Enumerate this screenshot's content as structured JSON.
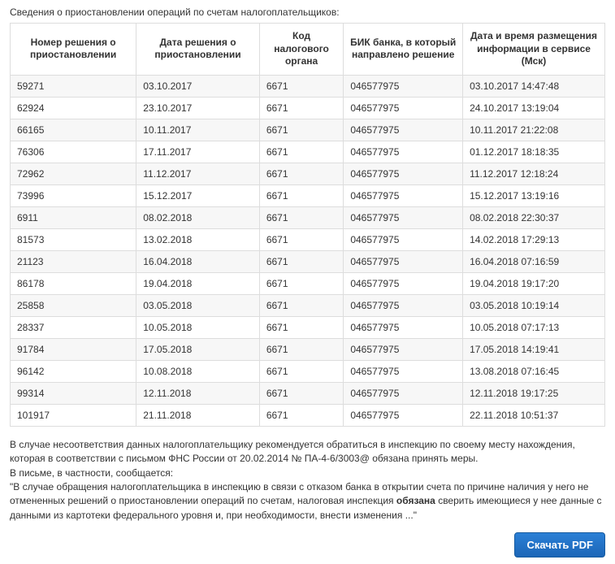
{
  "section_title": "Сведения о приостановлении операций по счетам налогоплательщиков:",
  "table": {
    "columns": [
      "Номер решения о приостановлении",
      "Дата решения о приостановлении",
      "Код налогового органа",
      "БИК банка, в который направлено решение",
      "Дата и время размещения информации в сервисе (Мск)"
    ],
    "rows": [
      [
        "59271",
        "03.10.2017",
        "6671",
        "046577975",
        "03.10.2017 14:47:48"
      ],
      [
        "62924",
        "23.10.2017",
        "6671",
        "046577975",
        "24.10.2017 13:19:04"
      ],
      [
        "66165",
        "10.11.2017",
        "6671",
        "046577975",
        "10.11.2017 21:22:08"
      ],
      [
        "76306",
        "17.11.2017",
        "6671",
        "046577975",
        "01.12.2017 18:18:35"
      ],
      [
        "72962",
        "11.12.2017",
        "6671",
        "046577975",
        "11.12.2017 12:18:24"
      ],
      [
        "73996",
        "15.12.2017",
        "6671",
        "046577975",
        "15.12.2017 13:19:16"
      ],
      [
        "6911",
        "08.02.2018",
        "6671",
        "046577975",
        "08.02.2018 22:30:37"
      ],
      [
        "81573",
        "13.02.2018",
        "6671",
        "046577975",
        "14.02.2018 17:29:13"
      ],
      [
        "21123",
        "16.04.2018",
        "6671",
        "046577975",
        "16.04.2018 07:16:59"
      ],
      [
        "86178",
        "19.04.2018",
        "6671",
        "046577975",
        "19.04.2018 19:17:20"
      ],
      [
        "25858",
        "03.05.2018",
        "6671",
        "046577975",
        "03.05.2018 10:19:14"
      ],
      [
        "28337",
        "10.05.2018",
        "6671",
        "046577975",
        "10.05.2018 07:17:13"
      ],
      [
        "91784",
        "17.05.2018",
        "6671",
        "046577975",
        "17.05.2018 14:19:41"
      ],
      [
        "96142",
        "10.08.2018",
        "6671",
        "046577975",
        "13.08.2018 07:16:45"
      ],
      [
        "99314",
        "12.11.2018",
        "6671",
        "046577975",
        "12.11.2018 19:17:25"
      ],
      [
        "101917",
        "21.11.2018",
        "6671",
        "046577975",
        "22.11.2018 10:51:37"
      ]
    ]
  },
  "footer": {
    "p1a": "В случае несоответствия данных налогоплательщику рекомендуется обратиться в инспекцию по своему месту нахождения, которая в соответствии с письмом ФНС России от 20.02.2014 № ПА-4-6/3003@ обязана принять меры.",
    "p2": "В письме, в частности, сообщается:",
    "p3a": "\"В случае обращения налогоплательщика в инспекцию в связи с отказом банка в открытии счета по причине наличия у него не отмененных решений о приостановлении операций по счетам, налоговая инспекция ",
    "p3bold": "обязана",
    "p3b": " сверить имеющиеся у нее данные с данными из картотеки федерального уровня и, при необходимости, внести изменения ...\""
  },
  "download_label": "Скачать PDF"
}
